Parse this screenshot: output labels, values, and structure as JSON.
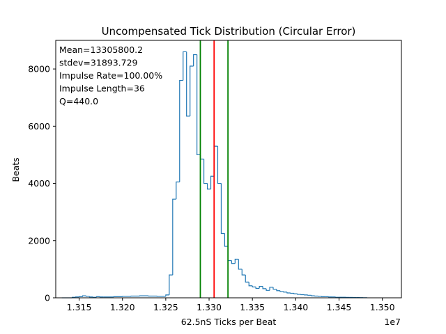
{
  "chart_data": {
    "type": "histogram",
    "title": "Uncompensated Tick Distribution (Circular Error)",
    "xlabel": "62.5nS Ticks per Beat",
    "ylabel": "Beats",
    "x_offset_label": "1e7",
    "xlim": [
      1.3123,
      1.3522
    ],
    "ylim": [
      0,
      9000
    ],
    "x_ticks": [
      1.315,
      1.32,
      1.325,
      1.33,
      1.335,
      1.34,
      1.345,
      1.35
    ],
    "x_tick_labels": [
      "1.315",
      "1.320",
      "1.325",
      "1.330",
      "1.335",
      "1.340",
      "1.345",
      "1.350"
    ],
    "y_ticks": [
      0,
      2000,
      4000,
      6000,
      8000
    ],
    "y_tick_labels": [
      "0",
      "2000",
      "4000",
      "6000",
      "8000"
    ],
    "grid": false,
    "annotations": [
      "Mean=13305800.2",
      "stdev=31893.729",
      "Impulse Rate=100.00%",
      "Impulse Length=36",
      "Q=440.0"
    ],
    "series": [
      {
        "color": "#1f77b4",
        "style": "step",
        "bin_edges": [
          1.313,
          1.3142,
          1.3146,
          1.315,
          1.3154,
          1.3158,
          1.3162,
          1.3166,
          1.317,
          1.3174,
          1.3178,
          1.319,
          1.32,
          1.321,
          1.322,
          1.323,
          1.324,
          1.325,
          1.3254,
          1.3258,
          1.3262,
          1.3266,
          1.327,
          1.3274,
          1.3278,
          1.3282,
          1.3286,
          1.329,
          1.3294,
          1.3298,
          1.3302,
          1.3306,
          1.331,
          1.3314,
          1.3318,
          1.3322,
          1.3326,
          1.333,
          1.3334,
          1.3338,
          1.3342,
          1.3346,
          1.335,
          1.3354,
          1.3358,
          1.3362,
          1.3366,
          1.337,
          1.3374,
          1.3378,
          1.3382,
          1.3386,
          1.339,
          1.3394,
          1.3398,
          1.3402,
          1.3406,
          1.341,
          1.3414,
          1.3418,
          1.3422,
          1.3426,
          1.343,
          1.3434,
          1.3438,
          1.3442,
          1.3446,
          1.345,
          1.3454,
          1.3458,
          1.3462,
          1.3466,
          1.347,
          1.3474,
          1.3478,
          1.3482
        ],
        "counts": [
          0,
          20,
          30,
          40,
          70,
          50,
          30,
          20,
          40,
          30,
          30,
          40,
          50,
          60,
          70,
          60,
          50,
          100,
          800,
          3450,
          4050,
          7600,
          8600,
          6350,
          8100,
          8500,
          5000,
          4850,
          4000,
          3800,
          4250,
          5300,
          4000,
          2250,
          1800,
          1300,
          1200,
          1350,
          1000,
          800,
          550,
          420,
          380,
          330,
          400,
          320,
          260,
          370,
          300,
          250,
          220,
          200,
          170,
          160,
          140,
          120,
          110,
          100,
          90,
          70,
          60,
          50,
          40,
          40,
          30,
          30,
          20,
          20,
          20,
          15,
          15,
          12,
          10,
          8,
          5
        ]
      }
    ],
    "vertical_lines": [
      {
        "x": 1.32899,
        "color": "#008000"
      },
      {
        "x": 1.33058,
        "color": "#ff0000"
      },
      {
        "x": 1.33218,
        "color": "#008000"
      }
    ]
  }
}
